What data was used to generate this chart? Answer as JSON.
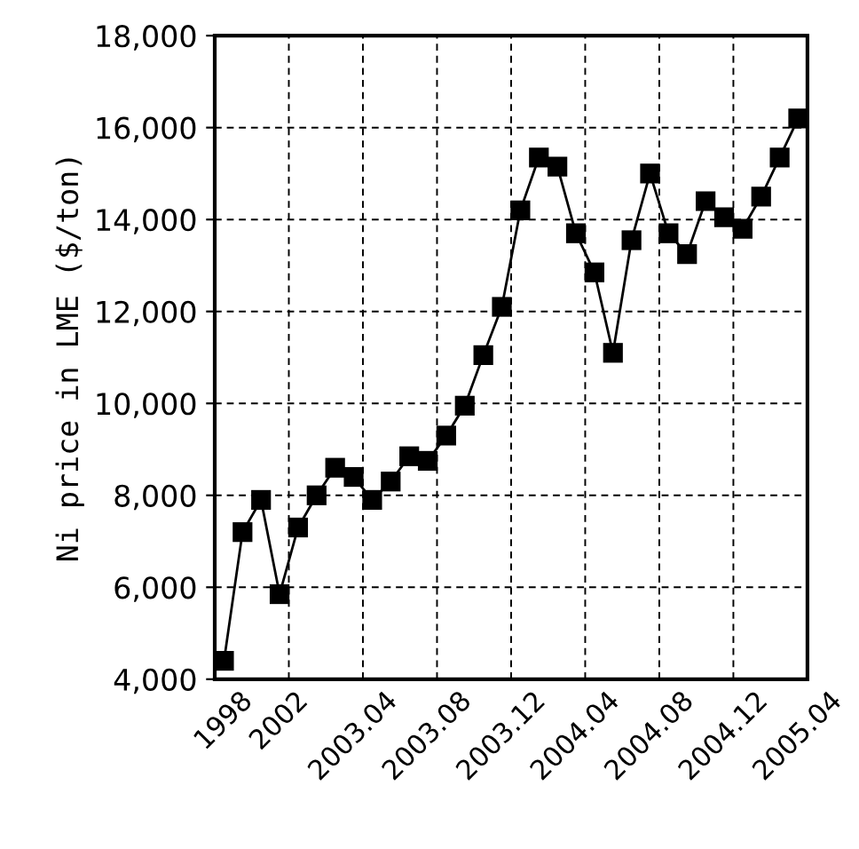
{
  "chart_data": {
    "type": "line",
    "ylabel": "Ni price in LME ($/ton)",
    "categories": [
      "1998",
      null,
      null,
      "2002",
      null,
      null,
      null,
      "2003.04",
      null,
      null,
      null,
      "2003.08",
      null,
      null,
      null,
      "2003.12",
      null,
      null,
      null,
      "2004.04",
      null,
      null,
      null,
      "2004.08",
      null,
      null,
      null,
      "2004.12",
      null,
      null,
      null,
      "2005.04"
    ],
    "series": [
      {
        "color": "#000000",
        "values": [
          4400,
          7200,
          7900,
          5850,
          7300,
          8000,
          8600,
          8400,
          7900,
          8300,
          8850,
          8750,
          9300,
          9950,
          11050,
          12100,
          14200,
          15350,
          15150,
          13700,
          12850,
          11100,
          13550,
          15000,
          13700,
          13250,
          14400,
          14050,
          13800,
          14500,
          15350,
          16200
        ]
      }
    ],
    "ylim": [
      4000,
      18000
    ],
    "yticks": [
      {
        "value": 4000,
        "label": "4,000"
      },
      {
        "value": 6000,
        "label": "6,000"
      },
      {
        "value": 8000,
        "label": "8,000"
      },
      {
        "value": 10000,
        "label": "10,000"
      },
      {
        "value": 12000,
        "label": "12,000"
      },
      {
        "value": 14000,
        "label": "14,000"
      },
      {
        "value": 16000,
        "label": "16,000"
      },
      {
        "value": 18000,
        "label": "18,000"
      }
    ],
    "grid": true,
    "marker": "square",
    "line_style": "solid"
  }
}
